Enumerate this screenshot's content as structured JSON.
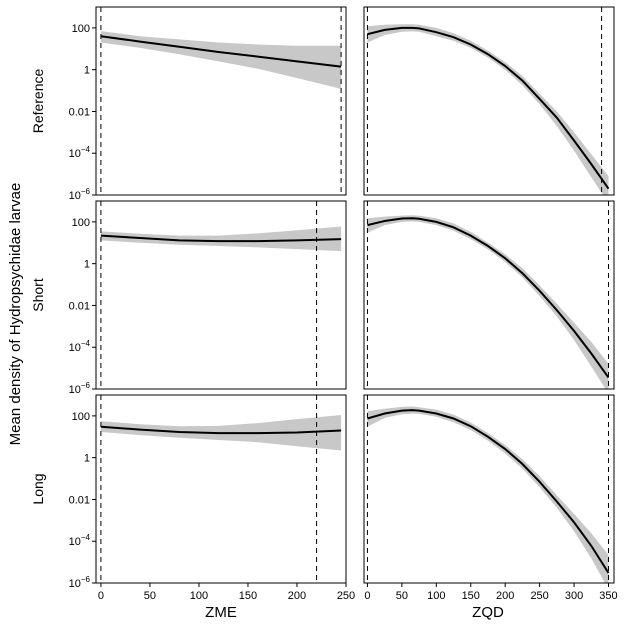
{
  "chart_data": {
    "type": "line",
    "ylabel": "Mean density of Hydropsychidae larvae",
    "y_scale": "log10",
    "ylim": [
      1e-06,
      1000
    ],
    "y_ticks": [
      {
        "label": "100"
      },
      {
        "label": "1"
      },
      {
        "label": "0.01"
      },
      {
        "label_base": "10",
        "label_exp": "−4"
      },
      {
        "label_base": "10",
        "label_exp": "−6"
      }
    ],
    "columns": [
      {
        "xlabel": "ZME",
        "xlim": [
          -5,
          250
        ],
        "x_ticks": [
          "0",
          "50",
          "100",
          "150",
          "200",
          "250"
        ]
      },
      {
        "xlabel": "ZQD",
        "xlim": [
          -5,
          358
        ],
        "x_ticks": [
          "0",
          "50",
          "100",
          "150",
          "200",
          "250",
          "300",
          "350"
        ]
      }
    ],
    "rows": [
      {
        "label": "Reference",
        "panels": [
          {
            "x": [
              0,
              40,
              80,
              120,
              160,
              200,
              245
            ],
            "y": [
              40,
              22,
              12.5,
              7,
              4.2,
              2.5,
              1.4
            ],
            "y_low": [
              20,
              11,
              5.5,
              2.5,
              1.1,
              0.4,
              0.12
            ],
            "y_high": [
              70,
              40,
              28,
              20,
              16,
              14,
              14
            ],
            "vlines": [
              0,
              245
            ]
          },
          {
            "x": [
              0,
              25,
              50,
              65,
              75,
              100,
              125,
              150,
              175,
              200,
              225,
              250,
              275,
              300,
              325,
              350
            ],
            "y": [
              50,
              80,
              100,
              100,
              95,
              62,
              36,
              16,
              5.5,
              1.5,
              0.3,
              0.04,
              0.005,
              0.0004,
              3e-05,
              2e-06
            ],
            "y_low": [
              20,
              45,
              65,
              68,
              65,
              40,
              24,
              11,
              3.8,
              1.0,
              0.18,
              0.022,
              0.002,
              0.00013,
              7e-06,
              4e-07
            ],
            "y_high": [
              120,
              140,
              150,
              150,
              140,
              100,
              55,
              24,
              8,
              2.3,
              0.5,
              0.07,
              0.01,
              0.001,
              9e-05,
              8e-06
            ],
            "vlines": [
              0,
              340
            ]
          }
        ]
      },
      {
        "label": "Short",
        "panels": [
          {
            "x": [
              0,
              40,
              80,
              120,
              160,
              200,
              245
            ],
            "y": [
              22,
              17,
              13,
              12,
              12,
              13,
              15
            ],
            "y_low": [
              13,
              10,
              8,
              7,
              6,
              5,
              4
            ],
            "y_high": [
              35,
              27,
              22,
              22,
              28,
              40,
              60
            ],
            "vlines": [
              0,
              220
            ]
          },
          {
            "x": [
              0,
              25,
              50,
              65,
              75,
              100,
              125,
              150,
              175,
              200,
              225,
              250,
              275,
              300,
              325,
              350
            ],
            "y": [
              70,
              110,
              145,
              150,
              140,
              100,
              55,
              22,
              7,
              1.8,
              0.35,
              0.05,
              0.006,
              0.0006,
              5e-05,
              3.5e-06
            ],
            "y_low": [
              30,
              70,
              100,
              105,
              100,
              70,
              38,
              15,
              4.8,
              1.2,
              0.22,
              0.028,
              0.003,
              0.00022,
              1.2e-05,
              6e-07
            ],
            "y_high": [
              150,
              180,
              200,
              210,
              200,
              150,
              85,
              33,
              10,
              2.8,
              0.6,
              0.09,
              0.012,
              0.0015,
              0.00018,
              1.6e-05
            ],
            "vlines": [
              0,
              350
            ]
          }
        ]
      },
      {
        "label": "Long",
        "panels": [
          {
            "x": [
              0,
              40,
              80,
              120,
              160,
              200,
              245
            ],
            "y": [
              30,
              22,
              17,
              15,
              15,
              16,
              20
            ],
            "y_low": [
              17,
              12,
              9,
              7,
              5.5,
              3.5,
              2.2
            ],
            "y_high": [
              55,
              40,
              32,
              33,
              45,
              70,
              110
            ],
            "vlines": [
              0,
              220
            ]
          },
          {
            "x": [
              0,
              25,
              50,
              65,
              75,
              100,
              125,
              150,
              175,
              200,
              225,
              250,
              275,
              300,
              325,
              350
            ],
            "y": [
              75,
              130,
              180,
              190,
              180,
              130,
              75,
              32,
              10,
              2.6,
              0.5,
              0.07,
              0.008,
              0.0008,
              6e-05,
              3e-06
            ],
            "y_low": [
              30,
              80,
              120,
              130,
              125,
              90,
              50,
              21,
              6.5,
              1.6,
              0.3,
              0.038,
              0.004,
              0.0003,
              1.5e-05,
              5e-07
            ],
            "y_high": [
              170,
              220,
              270,
              280,
              260,
              200,
              115,
              48,
              15,
              4,
              0.85,
              0.13,
              0.016,
              0.002,
              0.00024,
              2.2e-05
            ],
            "vlines": [
              0,
              350
            ]
          }
        ]
      }
    ],
    "colors": {
      "line": "#000000",
      "band": "#c8c8c8",
      "panel_border": "#000000"
    }
  }
}
